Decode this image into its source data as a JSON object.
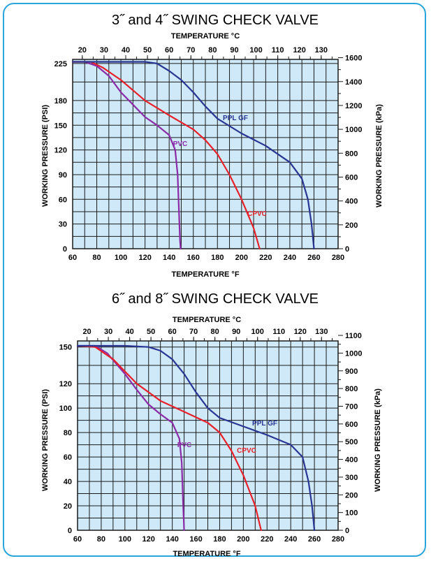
{
  "colors": {
    "frame": "#2aa6dc",
    "plot_bg": "#cfe9f8",
    "grid": "#1a1a1a",
    "pvc": "#8b2aa6",
    "cpvc": "#e8202a",
    "ppl_gf": "#283593"
  },
  "chart_data": [
    {
      "type": "line",
      "title": "3˝ and 4˝ SWING CHECK VALVE",
      "xlabel": "TEMPERATURE  °F",
      "ylabel": "WORKING PRESSURE  (PSI)",
      "top_axis_label": "TEMPERATURE  °C",
      "right_axis_label": "WORKING PRESSURE  (kPa)",
      "xlim": [
        60,
        280
      ],
      "ylim": [
        0,
        230
      ],
      "x_ticks": [
        "60",
        "80",
        "100",
        "120",
        "140",
        "160",
        "180",
        "200",
        "220",
        "240",
        "260",
        "280"
      ],
      "y_ticks": [
        "0",
        "30",
        "60",
        "90",
        "120",
        "150",
        "180",
        "225"
      ],
      "c_ticks": [
        "20",
        "30",
        "40",
        "50",
        "60",
        "70",
        "80",
        "90",
        "100",
        "110",
        "120",
        "130"
      ],
      "kpa_ticks": [
        "0",
        "200",
        "400",
        "600",
        "800",
        "1000",
        "1200",
        "1400",
        "1600"
      ],
      "grid": true,
      "series": [
        {
          "name": "PVC",
          "key": "pvc",
          "points": [
            [
              60,
              227
            ],
            [
              70,
              227
            ],
            [
              80,
              222
            ],
            [
              90,
              210
            ],
            [
              100,
              190
            ],
            [
              110,
              175
            ],
            [
              120,
              160
            ],
            [
              130,
              150
            ],
            [
              140,
              138
            ],
            [
              145,
              120
            ],
            [
              147,
              90
            ],
            [
              148,
              50
            ],
            [
              149,
              10
            ],
            [
              149.5,
              0
            ]
          ]
        },
        {
          "name": "CPVC",
          "key": "cpvc",
          "points": [
            [
              60,
              227
            ],
            [
              75,
              227
            ],
            [
              85,
              220
            ],
            [
              100,
              205
            ],
            [
              120,
              180
            ],
            [
              140,
              162
            ],
            [
              160,
              145
            ],
            [
              170,
              132
            ],
            [
              180,
              115
            ],
            [
              190,
              90
            ],
            [
              200,
              60
            ],
            [
              210,
              25
            ],
            [
              215,
              0
            ]
          ]
        },
        {
          "name": "PPL GF",
          "key": "ppl_gf",
          "points": [
            [
              60,
              227
            ],
            [
              120,
              227
            ],
            [
              130,
              225
            ],
            [
              140,
              216
            ],
            [
              150,
              205
            ],
            [
              160,
              190
            ],
            [
              170,
              173
            ],
            [
              180,
              158
            ],
            [
              200,
              140
            ],
            [
              220,
              125
            ],
            [
              240,
              105
            ],
            [
              250,
              85
            ],
            [
              255,
              60
            ],
            [
              258,
              30
            ],
            [
              260,
              0
            ]
          ]
        }
      ]
    },
    {
      "type": "line",
      "title": "6˝ and 8˝ SWING CHECK VALVE",
      "xlabel": "TEMPERATURE  °F",
      "ylabel": "WORKING PRESSURE  (PSI)",
      "top_axis_label": "TEMPERATURE  °C",
      "right_axis_label": "WORKING PRESSURE  (kPa)",
      "xlim": [
        60,
        280
      ],
      "ylim": [
        0,
        155
      ],
      "x_ticks": [
        "60",
        "80",
        "100",
        "120",
        "140",
        "160",
        "180",
        "200",
        "220",
        "240",
        "260",
        "280"
      ],
      "y_ticks": [
        "0",
        "20",
        "40",
        "60",
        "80",
        "100",
        "120",
        "150"
      ],
      "c_ticks": [
        "20",
        "30",
        "40",
        "50",
        "60",
        "70",
        "80",
        "90",
        "100",
        "110",
        "120",
        "130"
      ],
      "kpa_ticks": [
        "0",
        "100",
        "200",
        "300",
        "400",
        "500",
        "600",
        "700",
        "800",
        "900",
        "1000",
        "1100"
      ],
      "grid": true,
      "series": [
        {
          "name": "PVC",
          "key": "pvc",
          "points": [
            [
              60,
              151
            ],
            [
              75,
              151
            ],
            [
              85,
              145
            ],
            [
              100,
              128
            ],
            [
              110,
              115
            ],
            [
              120,
              103
            ],
            [
              130,
              95
            ],
            [
              140,
              88
            ],
            [
              146,
              75
            ],
            [
              148,
              55
            ],
            [
              149,
              25
            ],
            [
              150,
              0
            ]
          ]
        },
        {
          "name": "CPVC",
          "key": "cpvc",
          "points": [
            [
              60,
              151
            ],
            [
              75,
              150
            ],
            [
              90,
              140
            ],
            [
              110,
              120
            ],
            [
              130,
              106
            ],
            [
              150,
              97
            ],
            [
              170,
              88
            ],
            [
              180,
              80
            ],
            [
              190,
              65
            ],
            [
              200,
              45
            ],
            [
              210,
              20
            ],
            [
              215,
              0
            ]
          ]
        },
        {
          "name": "PPL GF",
          "key": "ppl_gf",
          "points": [
            [
              60,
              151
            ],
            [
              100,
              151
            ],
            [
              120,
              150
            ],
            [
              130,
              147
            ],
            [
              140,
              140
            ],
            [
              150,
              128
            ],
            [
              160,
              113
            ],
            [
              170,
              100
            ],
            [
              180,
              92
            ],
            [
              200,
              85
            ],
            [
              220,
              78
            ],
            [
              240,
              70
            ],
            [
              250,
              60
            ],
            [
              255,
              40
            ],
            [
              258,
              20
            ],
            [
              260,
              0
            ]
          ]
        }
      ]
    }
  ]
}
